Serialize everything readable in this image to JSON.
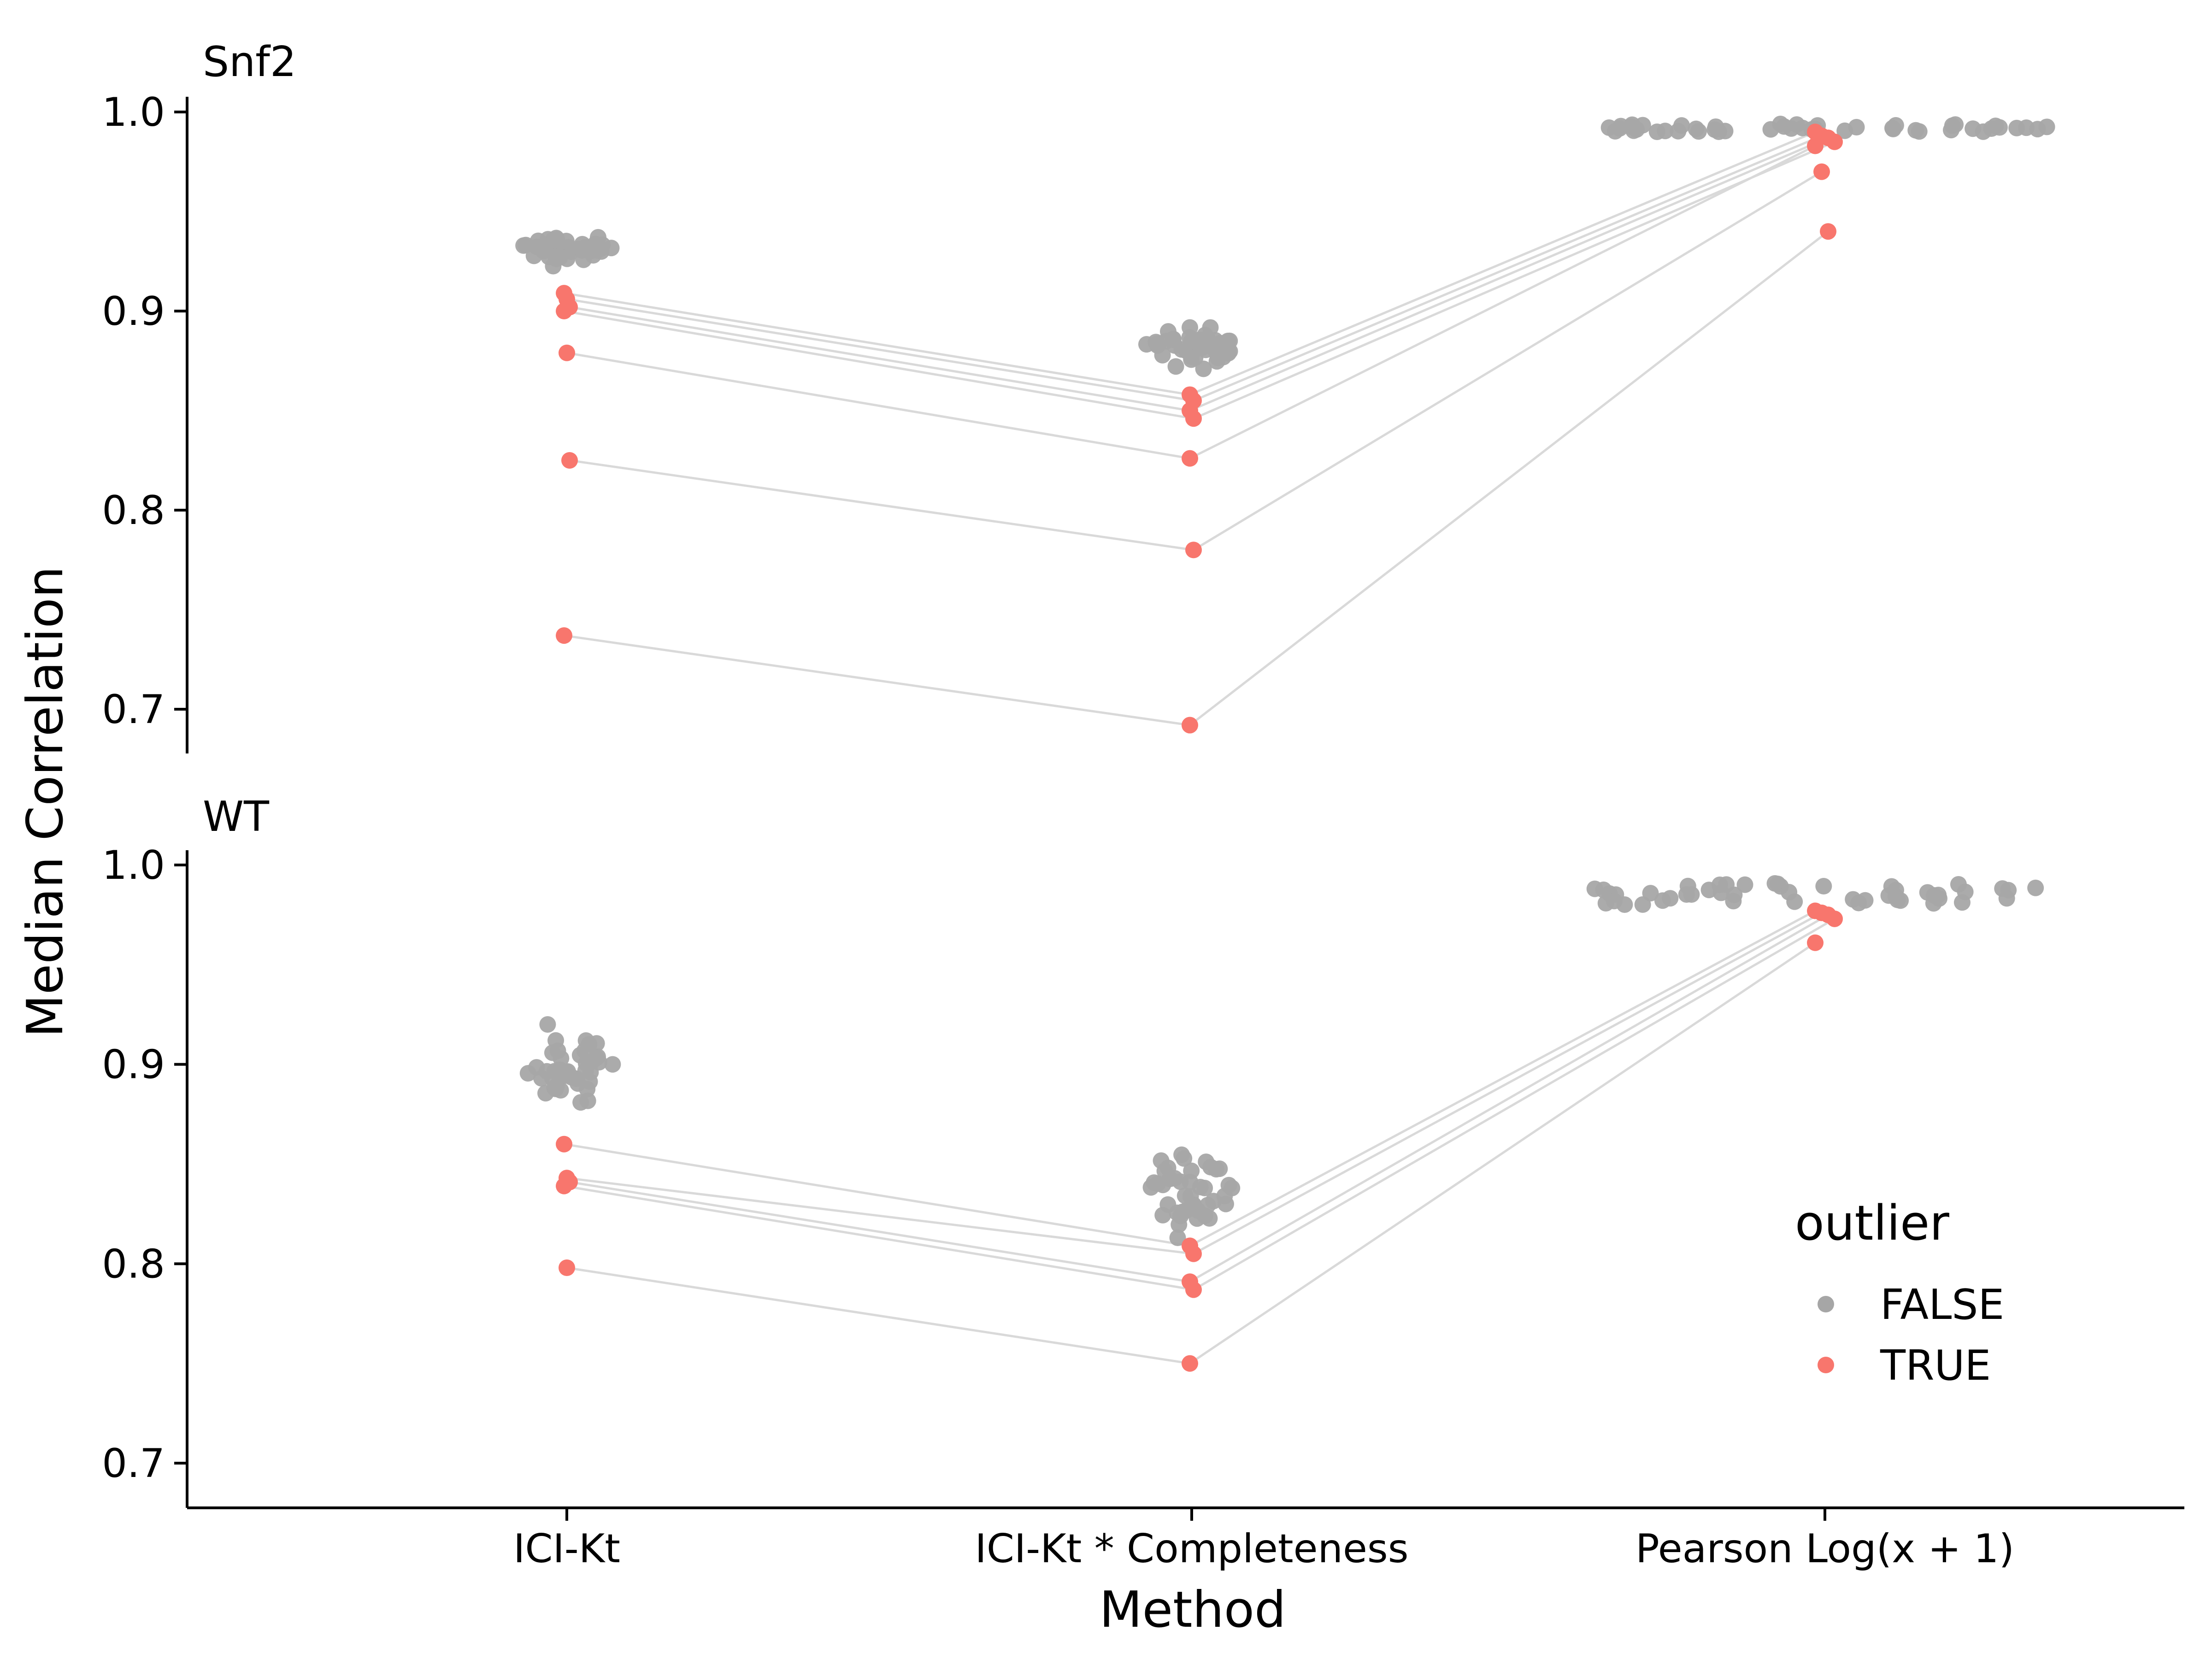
{
  "chart_data": {
    "type": "scatter",
    "xlabel": "Method",
    "ylabel": "Median Correlation",
    "categories": [
      "ICI-Kt",
      "ICI-Kt * Completeness",
      "Pearson Log(x + 1)"
    ],
    "yticks": [
      "0.7",
      "0.8",
      "0.9",
      "1.0"
    ],
    "ylim": [
      0.675,
      1.01
    ],
    "grid": false,
    "legend": {
      "title": "outlier",
      "position": "right",
      "entries": [
        {
          "label": "FALSE",
          "color": "#a6a6a6"
        },
        {
          "label": "TRUE",
          "color": "#f8766d"
        }
      ]
    },
    "colors": {
      "FALSE": "#a6a6a6",
      "TRUE": "#f8766d",
      "line": "#d9d9d9"
    },
    "panels": [
      {
        "label": "Snf2",
        "outlier_series": [
          {
            "ICI-Kt": 0.909,
            "ICI-Kt * Completeness": 0.858,
            "Pearson Log(x + 1)": 0.99
          },
          {
            "ICI-Kt": 0.906,
            "ICI-Kt * Completeness": 0.855,
            "Pearson Log(x + 1)": 0.988
          },
          {
            "ICI-Kt": 0.902,
            "ICI-Kt * Completeness": 0.85,
            "Pearson Log(x + 1)": 0.987
          },
          {
            "ICI-Kt": 0.9,
            "ICI-Kt * Completeness": 0.846,
            "Pearson Log(x + 1)": 0.985
          },
          {
            "ICI-Kt": 0.879,
            "ICI-Kt * Completeness": 0.826,
            "Pearson Log(x + 1)": 0.983
          },
          {
            "ICI-Kt": 0.825,
            "ICI-Kt * Completeness": 0.78,
            "Pearson Log(x + 1)": 0.97
          },
          {
            "ICI-Kt": 0.737,
            "ICI-Kt * Completeness": 0.692,
            "Pearson Log(x + 1)": 0.94
          }
        ],
        "normal_ranges": {
          "ICI-Kt": [
            0.92,
            0.942
          ],
          "ICI-Kt * Completeness": [
            0.866,
            0.897
          ],
          "Pearson Log(x + 1)": [
            0.99,
            0.994
          ]
        }
      },
      {
        "label": "WT",
        "outlier_series": [
          {
            "ICI-Kt": 0.86,
            "ICI-Kt * Completeness": 0.809,
            "Pearson Log(x + 1)": 0.977
          },
          {
            "ICI-Kt": 0.843,
            "ICI-Kt * Completeness": 0.805,
            "Pearson Log(x + 1)": 0.976
          },
          {
            "ICI-Kt": 0.841,
            "ICI-Kt * Completeness": 0.791,
            "Pearson Log(x + 1)": 0.975
          },
          {
            "ICI-Kt": 0.839,
            "ICI-Kt * Completeness": 0.787,
            "Pearson Log(x + 1)": 0.973
          },
          {
            "ICI-Kt": 0.798,
            "ICI-Kt * Completeness": 0.75,
            "Pearson Log(x + 1)": 0.961
          }
        ],
        "normal_ranges": {
          "ICI-Kt": [
            0.873,
            0.922
          ],
          "ICI-Kt * Completeness": [
            0.805,
            0.865
          ],
          "Pearson Log(x + 1)": [
            0.98,
            0.991
          ]
        }
      }
    ]
  }
}
